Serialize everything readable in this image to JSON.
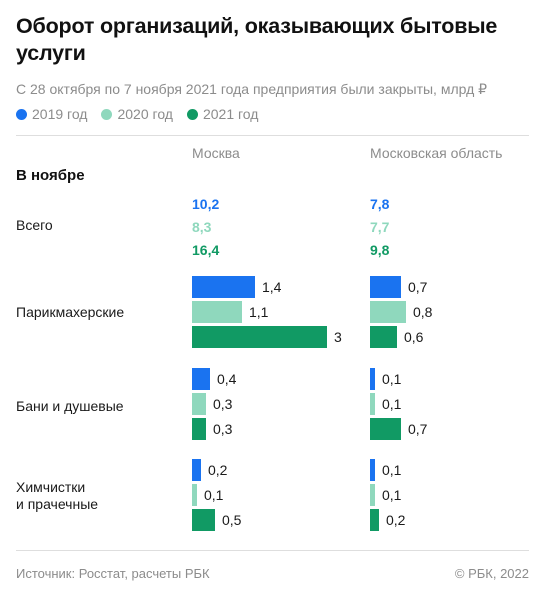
{
  "header": {
    "title": "Оборот организаций, оказывающих бытовые услуги",
    "subtitle": "С 28 октября по 7 ноября 2021 года предприятия были закрыты, млрд ₽"
  },
  "legend": [
    {
      "label": "2019 год",
      "color": "#1a73f0"
    },
    {
      "label": "2020 год",
      "color": "#8fd8bd"
    },
    {
      "label": "2021 год",
      "color": "#119a64"
    }
  ],
  "columns": [
    "Москва",
    "Московская область"
  ],
  "section_label": "В ноябре",
  "totals": {
    "label": "Всего",
    "moscow": [
      "10,2",
      "8,3",
      "16,4"
    ],
    "region": [
      "7,8",
      "7,7",
      "9,8"
    ]
  },
  "footer": {
    "source": "Источник: Росстат, расчеты РБК",
    "copyright": "©  РБК, 2022"
  },
  "chart_data": {
    "type": "bar",
    "orientation": "horizontal",
    "units": "млрд ₽",
    "series_names": [
      "2019 год",
      "2020 год",
      "2021 год"
    ],
    "categories": [
      "Парикмахерские",
      "Бани и душевые",
      "Химчистки и прачечные"
    ],
    "panels": [
      {
        "name": "Москва",
        "rows": [
          {
            "category": "Парикмахерские",
            "values": [
              1.4,
              1.1,
              3
            ],
            "labels": [
              "1,4",
              "1,1",
              "3"
            ]
          },
          {
            "category": "Бани и душевые",
            "values": [
              0.4,
              0.3,
              0.3
            ],
            "labels": [
              "0,4",
              "0,3",
              "0,3"
            ]
          },
          {
            "category": "Химчистки\nи прачечные",
            "values": [
              0.2,
              0.1,
              0.5
            ],
            "labels": [
              "0,2",
              "0,1",
              "0,5"
            ]
          }
        ]
      },
      {
        "name": "Московская область",
        "rows": [
          {
            "category": "Парикмахерские",
            "values": [
              0.7,
              0.8,
              0.6
            ],
            "labels": [
              "0,7",
              "0,8",
              "0,6"
            ]
          },
          {
            "category": "Бани и душевые",
            "values": [
              0.1,
              0.1,
              0.7
            ],
            "labels": [
              "0,1",
              "0,1",
              "0,7"
            ]
          },
          {
            "category": "Химчистки\nи прачечные",
            "values": [
              0.1,
              0.1,
              0.2
            ],
            "labels": [
              "0,1",
              "0,1",
              "0,2"
            ]
          }
        ]
      }
    ]
  }
}
